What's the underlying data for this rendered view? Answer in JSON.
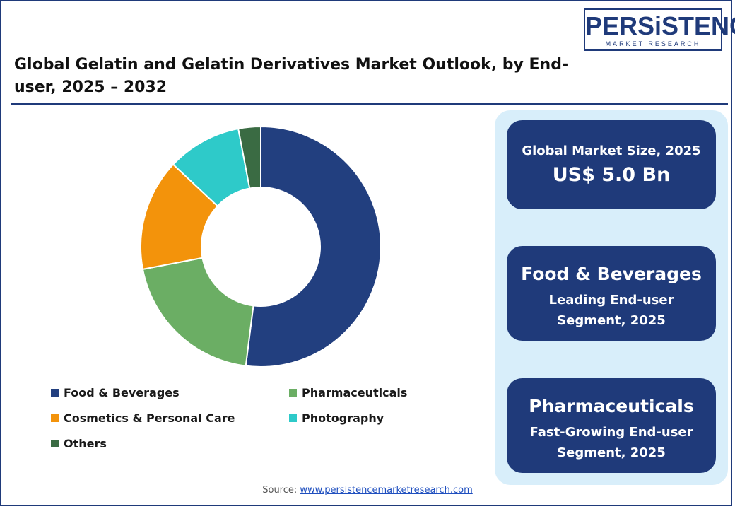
{
  "logo": {
    "name": "PERSiSTENCE",
    "tagline": "MARKET RESEARCH",
    "color": "#1f3a7a"
  },
  "title": "Global Gelatin and Gelatin Derivatives Market Outlook, by End-user, 2025 – 2032",
  "chart_data": {
    "type": "pie",
    "title": "",
    "donut": true,
    "categories": [
      "Food & Beverages",
      "Pharmaceuticals",
      "Cosmetics & Personal Care",
      "Photography",
      "Others"
    ],
    "values": [
      52,
      20,
      15,
      10,
      3
    ],
    "colors": [
      "#223f7f",
      "#6bae64",
      "#f3930b",
      "#2ecac9",
      "#3a6b43"
    ],
    "legend": "bottom"
  },
  "cards": [
    {
      "label": "Global Market Size, 2025",
      "value": "US$ 5.0 Bn"
    },
    {
      "heading": "Food & Beverages",
      "sub": "Leading End-user Segment, 2025"
    },
    {
      "heading": "Pharmaceuticals",
      "sub": "Fast-Growing End-user Segment, 2025"
    }
  ],
  "source": {
    "label": "Source:",
    "link": "www.persistencemarketresearch.com"
  }
}
